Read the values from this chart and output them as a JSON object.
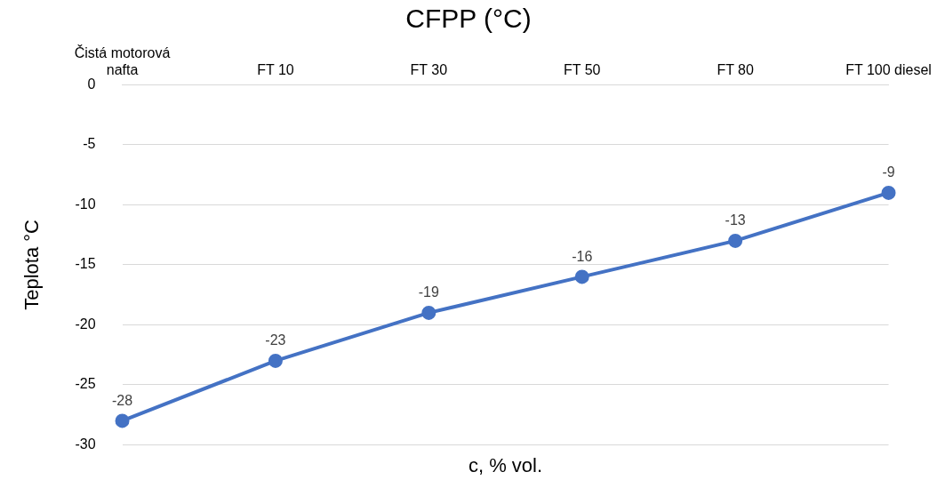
{
  "chart_data": {
    "type": "line",
    "title": "CFPP (°C)",
    "xlabel": "c, % vol.",
    "ylabel": "Teplota °C",
    "categories": [
      "Čistá motorová nafta",
      "FT 10",
      "FT 30",
      "FT 50",
      "FT 80",
      "FT 100 diesel"
    ],
    "values": [
      -28,
      -23,
      -19,
      -16,
      -13,
      -9
    ],
    "color": "#4472c4",
    "ylim": [
      -30,
      0
    ],
    "yticks": [
      -30,
      -25,
      -20,
      -15,
      -10,
      -5,
      0
    ],
    "grid": "y",
    "legend": false,
    "marker": "circle",
    "line_style": "solid",
    "data_labels": true
  }
}
